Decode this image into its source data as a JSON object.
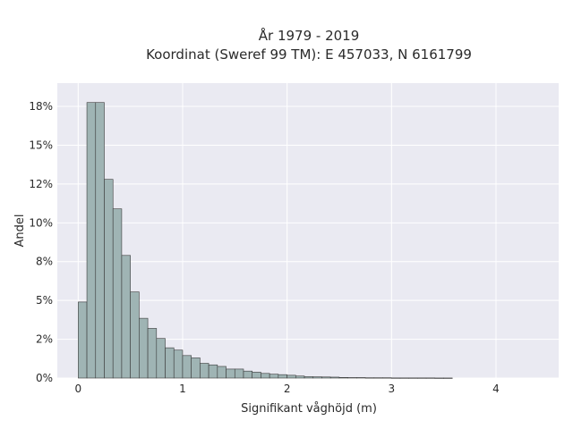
{
  "chart_data": {
    "type": "bar",
    "title_line1": "År 1979 - 2019",
    "title_line2": "Koordinat (Sweref 99 TM): E 457033, N 6161799",
    "xlabel": "Signifikant våghöjd (m)",
    "ylabel": "Andel",
    "xlim": [
      -0.2,
      4.6
    ],
    "ylim": [
      0,
      0.19
    ],
    "grid": true,
    "x_ticks": [
      {
        "value": 0,
        "label": "0"
      },
      {
        "value": 1,
        "label": "1"
      },
      {
        "value": 2,
        "label": "2"
      },
      {
        "value": 3,
        "label": "3"
      },
      {
        "value": 4,
        "label": "4"
      }
    ],
    "y_ticks": [
      {
        "value": 0,
        "label": "0%"
      },
      {
        "value": 0.025,
        "label": "2%"
      },
      {
        "value": 0.05,
        "label": "5%"
      },
      {
        "value": 0.075,
        "label": "8%"
      },
      {
        "value": 0.1,
        "label": "10%"
      },
      {
        "value": 0.125,
        "label": "12%"
      },
      {
        "value": 0.15,
        "label": "15%"
      },
      {
        "value": 0.175,
        "label": "18%"
      }
    ],
    "bin_width": 0.0833,
    "bin_start": 0,
    "values": [
      0.049,
      0.1775,
      0.1775,
      0.128,
      0.109,
      0.079,
      0.0555,
      0.0385,
      0.032,
      0.0255,
      0.0195,
      0.018,
      0.0145,
      0.013,
      0.0095,
      0.0085,
      0.0075,
      0.0058,
      0.0058,
      0.0045,
      0.0038,
      0.003,
      0.0025,
      0.0022,
      0.0018,
      0.0013,
      0.0009,
      0.0008,
      0.0007,
      0.0006,
      0.0004,
      0.0003,
      0.0003,
      0.0002,
      0.0002,
      0.0002,
      0.0001,
      0.0001,
      0.0001,
      0.0001,
      0.0001,
      5e-05,
      5e-05
    ],
    "colors": {
      "plot_bg": "#eaeaf2",
      "bar_fill": "#9fb4b4",
      "bar_stroke": "#3a3a3a",
      "grid": "#ffffff"
    }
  }
}
